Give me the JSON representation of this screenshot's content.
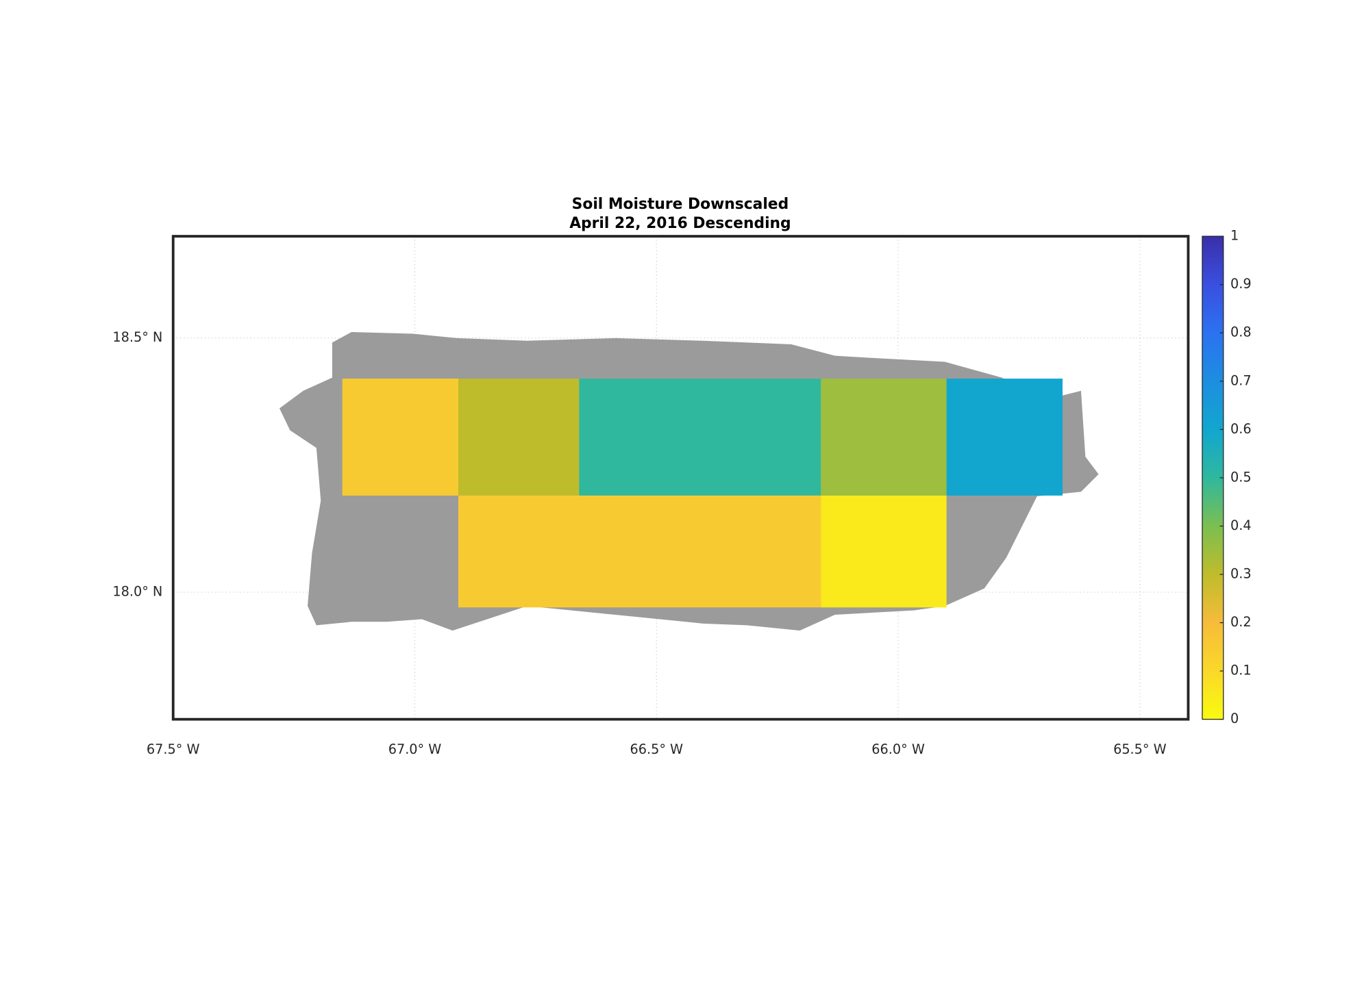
{
  "chart_data": {
    "type": "map",
    "title": "Soil Moisture Downscaled",
    "subtitle": "April 22, 2016 Descending",
    "xlim": [
      -67.5,
      -65.4
    ],
    "ylim": [
      17.75,
      18.7
    ],
    "xticks": [
      {
        "value": -67.5,
        "label": "67.5° W"
      },
      {
        "value": -67.0,
        "label": "67.0° W"
      },
      {
        "value": -66.5,
        "label": "66.5° W"
      },
      {
        "value": -66.0,
        "label": "66.0° W"
      },
      {
        "value": -65.5,
        "label": "65.5° W"
      }
    ],
    "yticks": [
      {
        "value": 18.0,
        "label": "18.0° N"
      },
      {
        "value": 18.5,
        "label": "18.5° N"
      }
    ],
    "grid": true,
    "land_color": "#9b9b9b",
    "colorbar": {
      "lim": [
        0,
        1
      ],
      "ticks": [
        0,
        0.1,
        0.2,
        0.3,
        0.4,
        0.5,
        0.6,
        0.7,
        0.8,
        0.9,
        1
      ],
      "colormap": [
        "#f9fb0e",
        "#fad82a",
        "#f6bc3a",
        "#bfbc2c",
        "#7bbf50",
        "#2fb89e",
        "#12a6cf",
        "#1d8ee0",
        "#2b72f0",
        "#3a4fe0",
        "#3a2fa8"
      ]
    },
    "tiles": [
      {
        "lon": [
          -67.15,
          -66.91
        ],
        "lat": [
          18.19,
          18.42
        ],
        "value": 0.15
      },
      {
        "lon": [
          -66.91,
          -66.66
        ],
        "lat": [
          18.19,
          18.42
        ],
        "value": 0.3
      },
      {
        "lon": [
          -66.66,
          -66.16
        ],
        "lat": [
          18.19,
          18.42
        ],
        "value": 0.5
      },
      {
        "lon": [
          -66.16,
          -65.9
        ],
        "lat": [
          18.19,
          18.42
        ],
        "value": 0.35
      },
      {
        "lon": [
          -65.9,
          -65.66
        ],
        "lat": [
          18.19,
          18.42
        ],
        "value": 0.6
      },
      {
        "lon": [
          -66.91,
          -66.16
        ],
        "lat": [
          17.97,
          18.19
        ],
        "value": 0.15
      },
      {
        "lon": [
          -66.16,
          -65.9
        ],
        "lat": [
          17.97,
          18.19
        ],
        "value": 0.05
      }
    ]
  }
}
